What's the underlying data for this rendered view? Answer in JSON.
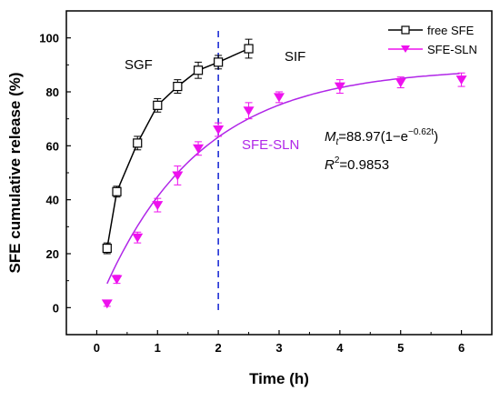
{
  "chart_data": {
    "type": "line",
    "xlabel": "Time (h)",
    "ylabel": "SFE cumulative release (%)",
    "xlim": [
      -0.5,
      6.5
    ],
    "ylim": [
      -10,
      110
    ],
    "x_ticks": [
      0,
      1,
      2,
      3,
      4,
      5,
      6
    ],
    "y_ticks": [
      0,
      20,
      40,
      60,
      80,
      100
    ],
    "grid": false,
    "legend_position": "top-right",
    "series": [
      {
        "name": "free SFE",
        "color": "#000000",
        "marker": "open-square",
        "points": [
          {
            "x": 0.17,
            "y": 22,
            "err": 2
          },
          {
            "x": 0.33,
            "y": 43,
            "err": 2
          },
          {
            "x": 0.67,
            "y": 61,
            "err": 2.5
          },
          {
            "x": 1.0,
            "y": 75,
            "err": 2.5
          },
          {
            "x": 1.33,
            "y": 82,
            "err": 2.5
          },
          {
            "x": 1.67,
            "y": 88,
            "err": 3
          },
          {
            "x": 2.0,
            "y": 91,
            "err": 2.5
          },
          {
            "x": 2.5,
            "y": 96,
            "err": 3.5
          }
        ]
      },
      {
        "name": "SFE-SLN",
        "color": "#ee11ee",
        "marker": "down-triangle",
        "points": [
          {
            "x": 0.17,
            "y": 1.5,
            "err": 1
          },
          {
            "x": 0.33,
            "y": 10.5,
            "err": 1.5
          },
          {
            "x": 0.67,
            "y": 26,
            "err": 2
          },
          {
            "x": 1.0,
            "y": 38,
            "err": 2.5
          },
          {
            "x": 1.33,
            "y": 49,
            "err": 3.5
          },
          {
            "x": 1.67,
            "y": 59,
            "err": 2.5
          },
          {
            "x": 2.0,
            "y": 66,
            "err": 2.5
          },
          {
            "x": 2.5,
            "y": 73,
            "err": 3
          },
          {
            "x": 3.0,
            "y": 78,
            "err": 2
          },
          {
            "x": 4.0,
            "y": 82,
            "err": 2.5
          },
          {
            "x": 5.0,
            "y": 83.5,
            "err": 2
          },
          {
            "x": 6.0,
            "y": 84.5,
            "err": 2.5
          }
        ]
      }
    ],
    "fit": {
      "color": "#b026e8",
      "a": 88.97,
      "k": 0.62
    },
    "divider_x": 2,
    "divider_color": "#1f2fd6",
    "annotations": {
      "sgf": "SGF",
      "sif": "SIF",
      "fit_label": "SFE-SLN",
      "eq_M": "M",
      "eq_sub": "t",
      "eq_mid": "=88.97(1−e",
      "eq_exp": "−0.62t",
      "eq_close": ")",
      "r2_R": "R",
      "r2_sup": "2",
      "r2_val": "=0.9853"
    }
  }
}
